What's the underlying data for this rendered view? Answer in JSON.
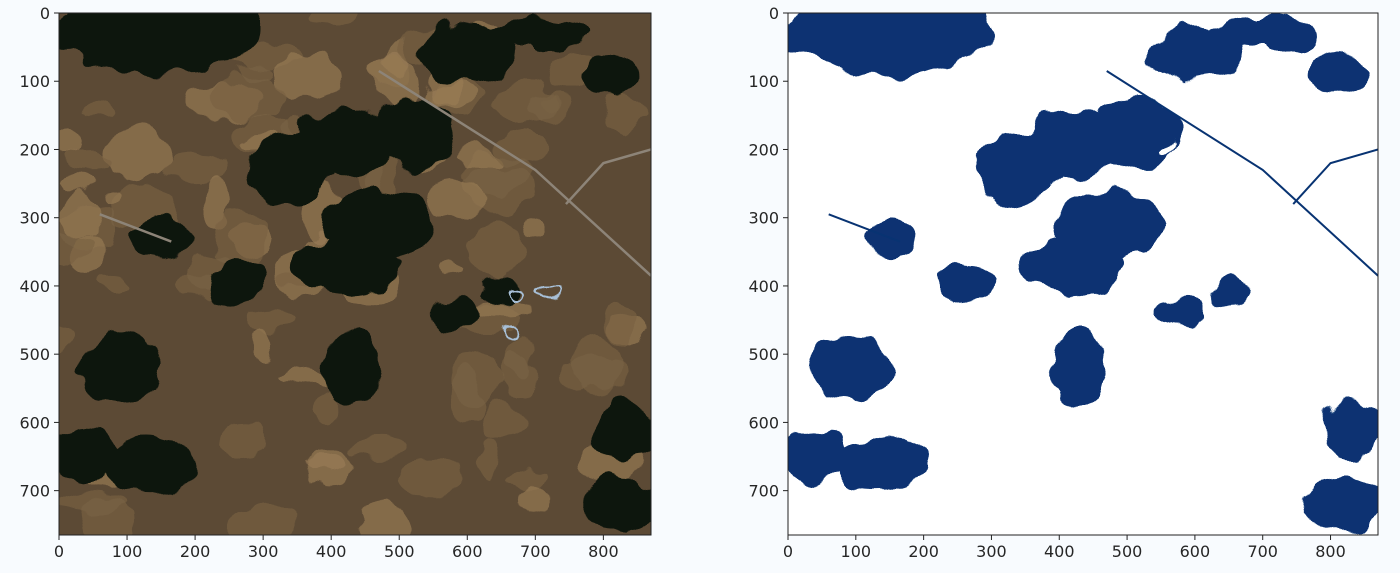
{
  "chart_data": [
    {
      "type": "image",
      "title": "",
      "xlabel": "",
      "ylabel": "",
      "xlim": [
        0,
        870
      ],
      "ylim": [
        765,
        0
      ],
      "xticks": [
        0,
        100,
        200,
        300,
        400,
        500,
        600,
        700,
        800
      ],
      "yticks": [
        0,
        100,
        200,
        300,
        400,
        500,
        600,
        700
      ],
      "colors": {
        "background": "#5c4a35",
        "dark": "#0f170d",
        "mid": "#7a6244",
        "light": "#9a7c56",
        "water": "#a8c0d8"
      },
      "dark_regions": [
        {
          "x": 150,
          "y": 20,
          "rx": 150,
          "ry": 70
        },
        {
          "x": 420,
          "y": 190,
          "rx": 70,
          "ry": 50
        },
        {
          "x": 520,
          "y": 175,
          "rx": 60,
          "ry": 55
        },
        {
          "x": 470,
          "y": 310,
          "rx": 80,
          "ry": 50
        },
        {
          "x": 420,
          "y": 370,
          "rx": 80,
          "ry": 40
        },
        {
          "x": 340,
          "y": 230,
          "rx": 60,
          "ry": 55
        },
        {
          "x": 150,
          "y": 330,
          "rx": 40,
          "ry": 30
        },
        {
          "x": 90,
          "y": 520,
          "rx": 60,
          "ry": 50
        },
        {
          "x": 40,
          "y": 650,
          "rx": 45,
          "ry": 40
        },
        {
          "x": 130,
          "y": 660,
          "rx": 70,
          "ry": 40
        },
        {
          "x": 430,
          "y": 520,
          "rx": 40,
          "ry": 60
        },
        {
          "x": 580,
          "y": 440,
          "rx": 35,
          "ry": 25
        },
        {
          "x": 650,
          "y": 410,
          "rx": 30,
          "ry": 20
        },
        {
          "x": 830,
          "y": 610,
          "rx": 45,
          "ry": 45
        },
        {
          "x": 820,
          "y": 720,
          "rx": 60,
          "ry": 40
        },
        {
          "x": 260,
          "y": 395,
          "rx": 40,
          "ry": 30
        },
        {
          "x": 10,
          "y": 30,
          "rx": 20,
          "ry": 25
        },
        {
          "x": 600,
          "y": 60,
          "rx": 70,
          "ry": 40
        },
        {
          "x": 700,
          "y": 30,
          "rx": 80,
          "ry": 25
        },
        {
          "x": 810,
          "y": 90,
          "rx": 40,
          "ry": 30
        }
      ],
      "road_1": [
        [
          470,
          85
        ],
        [
          700,
          230
        ],
        [
          870,
          385
        ]
      ],
      "road_2": [
        [
          745,
          280
        ],
        [
          800,
          220
        ],
        [
          870,
          200
        ]
      ],
      "road_3": [
        [
          60,
          295
        ],
        [
          165,
          335
        ]
      ]
    },
    {
      "type": "image",
      "title": "",
      "xlabel": "",
      "ylabel": "",
      "xlim": [
        0,
        870
      ],
      "ylim": [
        765,
        0
      ],
      "xticks": [
        0,
        100,
        200,
        300,
        400,
        500,
        600,
        700,
        800
      ],
      "yticks": [
        0,
        100,
        200,
        300,
        400,
        500,
        600,
        700
      ],
      "colors": {
        "background": "#ffffff",
        "mask": "#083372"
      }
    }
  ]
}
